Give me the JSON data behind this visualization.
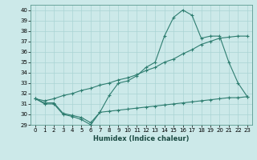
{
  "xlabel": "Humidex (Indice chaleur)",
  "bg_color": "#cce9e9",
  "grid_color": "#aad4d4",
  "line_color": "#2e7d70",
  "ylim": [
    29,
    40.5
  ],
  "xlim": [
    -0.5,
    23.5
  ],
  "yticks": [
    29,
    30,
    31,
    32,
    33,
    34,
    35,
    36,
    37,
    38,
    39,
    40
  ],
  "xticks": [
    0,
    1,
    2,
    3,
    4,
    5,
    6,
    7,
    8,
    9,
    10,
    11,
    12,
    13,
    14,
    15,
    16,
    17,
    18,
    19,
    20,
    21,
    22,
    23
  ],
  "curve1_y": [
    31.5,
    31.0,
    31.0,
    30.0,
    29.8,
    29.5,
    29.0,
    30.2,
    31.8,
    33.0,
    33.2,
    33.7,
    34.5,
    35.0,
    37.5,
    39.3,
    40.0,
    39.5,
    37.3,
    37.5,
    37.5,
    35.0,
    33.0,
    31.7
  ],
  "curve2_y": [
    31.5,
    31.3,
    31.5,
    31.8,
    32.0,
    32.3,
    32.5,
    32.8,
    33.0,
    33.3,
    33.5,
    33.8,
    34.2,
    34.5,
    35.0,
    35.3,
    35.8,
    36.2,
    36.7,
    37.0,
    37.3,
    37.4,
    37.5,
    37.5
  ],
  "curve3_y": [
    31.5,
    31.1,
    31.1,
    30.1,
    29.9,
    29.7,
    29.2,
    30.2,
    30.3,
    30.4,
    30.5,
    30.6,
    30.7,
    30.8,
    30.9,
    31.0,
    31.1,
    31.2,
    31.3,
    31.4,
    31.5,
    31.6,
    31.6,
    31.7
  ]
}
